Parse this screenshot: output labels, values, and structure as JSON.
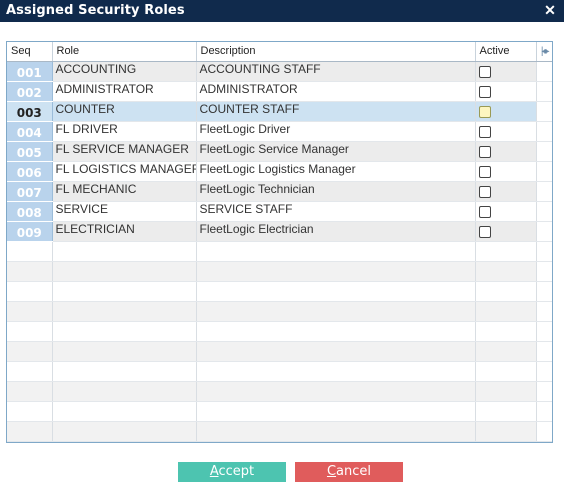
{
  "window": {
    "title": "Assigned Security Roles",
    "close_icon": "close-icon"
  },
  "grid": {
    "columns": {
      "seq": "Seq",
      "role": "Role",
      "description": "Description",
      "active": "Active"
    },
    "rows": [
      {
        "seq": "001",
        "role": "ACCOUNTING",
        "description": "ACCOUNTING STAFF",
        "active": false
      },
      {
        "seq": "002",
        "role": "ADMINISTRATOR",
        "description": "ADMINISTRATOR",
        "active": false
      },
      {
        "seq": "003",
        "role": "COUNTER",
        "description": "COUNTER STAFF",
        "active": false
      },
      {
        "seq": "004",
        "role": "FL DRIVER",
        "description": "FleetLogic Driver",
        "active": false
      },
      {
        "seq": "005",
        "role": "FL SERVICE MANAGER",
        "description": "FleetLogic Service Manager",
        "active": false
      },
      {
        "seq": "006",
        "role": "FL LOGISTICS MANAGER",
        "description": "FleetLogic Logistics Manager",
        "active": false
      },
      {
        "seq": "007",
        "role": "FL MECHANIC",
        "description": "FleetLogic Technician",
        "active": false
      },
      {
        "seq": "008",
        "role": "SERVICE",
        "description": "SERVICE STAFF",
        "active": false
      },
      {
        "seq": "009",
        "role": "ELECTRICIAN",
        "description": "FleetLogic Electrician",
        "active": false
      }
    ],
    "selected_seq": "003"
  },
  "buttons": {
    "accept": {
      "mnemonic": "A",
      "rest": "ccept"
    },
    "cancel": {
      "mnemonic": "C",
      "rest": "ancel"
    }
  },
  "colors": {
    "titlebar": "#102a4c",
    "accept": "#4dc4b0",
    "cancel": "#e05c5c",
    "seq_cell": "#b9d3ec",
    "selected_row": "#cde2f2"
  }
}
